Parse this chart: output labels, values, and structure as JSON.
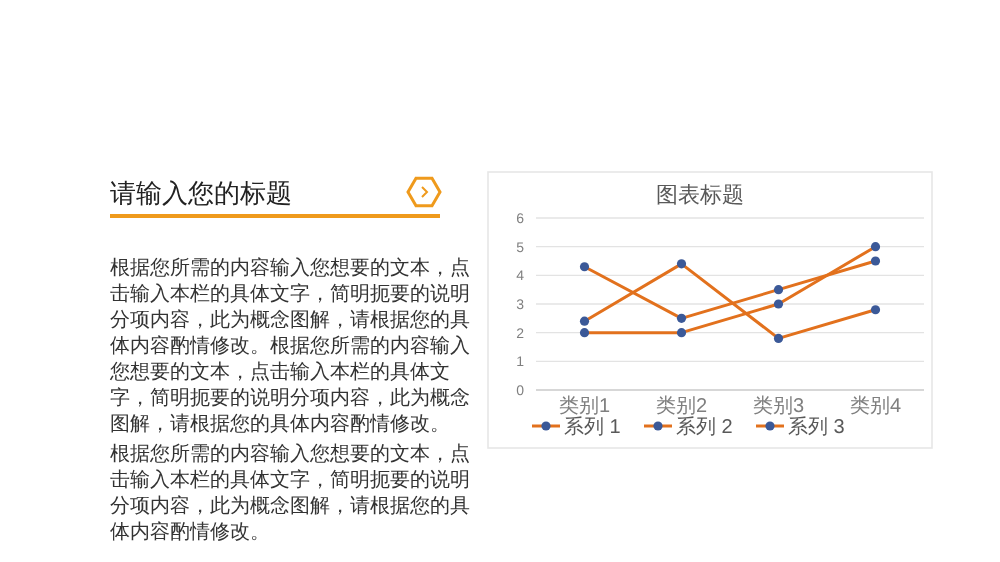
{
  "chart_data": {
    "type": "line",
    "title": "图表标题",
    "categories": [
      "类别1",
      "类别2",
      "类别3",
      "类别4"
    ],
    "series": [
      {
        "name": "系列 1",
        "color": "#e2711d",
        "values": [
          4.3,
          2.5,
          3.5,
          4.5
        ]
      },
      {
        "name": "系列 2",
        "color": "#e2711d",
        "values": [
          2.4,
          4.4,
          1.8,
          2.8
        ]
      },
      {
        "name": "系列 3",
        "color": "#e2711d",
        "values": [
          2,
          2,
          3,
          5
        ]
      }
    ],
    "ylim": [
      0,
      6
    ],
    "yticks": [
      0,
      1,
      2,
      3,
      4,
      5,
      6
    ],
    "grid": "y",
    "legend": "bottom",
    "marker": "circle",
    "annotations": [
      "请输入您的标题",
      "根据您所需的内容输入您想要的文本，点击输入本栏的具体文字，简明扼要的说明分项内容，此为概念图解，请根据您的具体内容酌情修改。根据您所需的内容输入您想要的文本，点击输入本栏的具体文字，简明扼要的说明分项内容，此为概念图解，请根据您的具体内容酌情修改。",
      "根据您所需的内容输入您想要的文本，点击输入本栏的具体文字，简明扼要的说明分项内容，此为概念图解，请根据您的具体内容酌情修改。"
    ]
  }
}
